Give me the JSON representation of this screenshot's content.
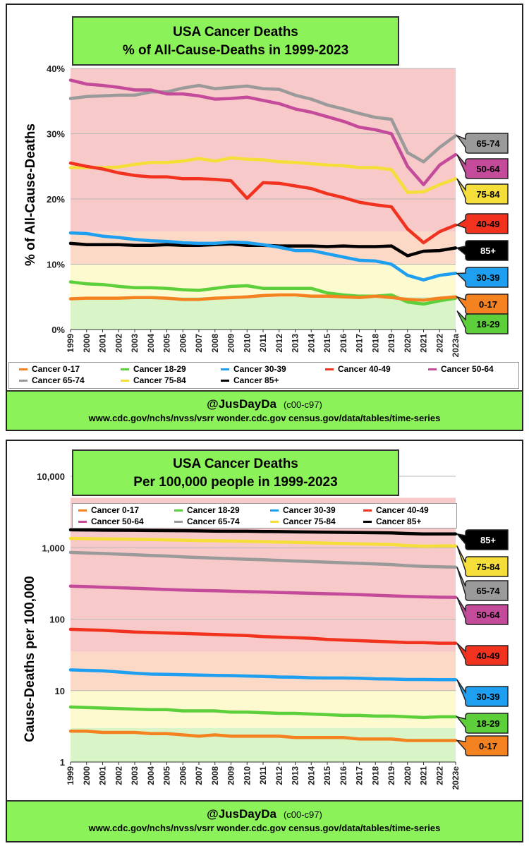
{
  "colors": {
    "c0_17": "#f58220",
    "c18_29": "#5ccf3a",
    "c30_39": "#1e9ff0",
    "c40_49": "#f0321e",
    "c50_64": "#c44a9a",
    "c65_74": "#9a9a9a",
    "c75_84": "#f5de3a",
    "c85": "#000000",
    "title_bg": "#8cf25a"
  },
  "charts": [
    {
      "title_line1": "USA Cancer Deaths",
      "title_line2": "% of All-Cause-Deaths in 1999-2023",
      "ylabel": "% of All-Cause-Deaths",
      "footer_handle": "@JusDayDa",
      "footer_codes": "(c00-c97)",
      "footer_sources": "www.cdc.gov/nchs/nvss/vsrr  wonder.cdc.gov  census.gov/data/tables/time-series",
      "legend": [
        "Cancer 0-17",
        "Cancer 18-29",
        "Cancer 30-39",
        "Cancer 40-49",
        "Cancer 50-64",
        "Cancer 65-74",
        "Cancer 75-84",
        "Cancer 85+"
      ]
    },
    {
      "title_line1": "USA Cancer Deaths",
      "title_line2": "Per 100,000 people in 1999-2023",
      "ylabel": "Cause-Deaths per 100,000",
      "footer_handle": "@JusDayDa",
      "footer_codes": "(c00-c97)",
      "footer_sources": "www.cdc.gov/nchs/nvss/vsrr  wonder.cdc.gov  census.gov/data/tables/time-series",
      "legend": [
        "Cancer 0-17",
        "Cancer 18-29",
        "Cancer 30-39",
        "Cancer 40-49",
        "Cancer 50-64",
        "Cancer 65-74",
        "Cancer 75-84",
        "Cancer 85+"
      ]
    }
  ],
  "chart_data": [
    {
      "type": "line",
      "title": "USA Cancer Deaths % of All-Cause-Deaths in 1999-2023",
      "ylabel": "% of All-Cause-Deaths",
      "x": [
        "1999",
        "2000",
        "2001",
        "2002",
        "2003",
        "2004",
        "2005",
        "2006",
        "2007",
        "2008",
        "2009",
        "2010",
        "2011",
        "2012",
        "2013",
        "2014",
        "2015",
        "2016",
        "2017",
        "2018",
        "2019",
        "2020",
        "2021",
        "2022",
        "2023a"
      ],
      "ylim": [
        0,
        40
      ],
      "yticks": [
        "0%",
        "10%",
        "20%",
        "30%",
        "40%"
      ],
      "bands": [
        {
          "from": 0,
          "to": 5,
          "color": "#d9f5c8"
        },
        {
          "from": 5,
          "to": 10,
          "color": "#fdfad0"
        },
        {
          "from": 10,
          "to": 15,
          "color": "#fcd9c6"
        },
        {
          "from": 15,
          "to": 40,
          "color": "#f8c9c9"
        }
      ],
      "series": [
        {
          "name": "Cancer 0-17",
          "key": "c0_17",
          "tag": "0-17",
          "values": [
            4.7,
            4.8,
            4.8,
            4.8,
            4.9,
            4.9,
            4.8,
            4.6,
            4.6,
            4.8,
            4.9,
            5.0,
            5.2,
            5.3,
            5.3,
            5.1,
            5.1,
            5.0,
            4.9,
            5.1,
            4.9,
            4.6,
            4.5,
            4.8,
            5.0
          ]
        },
        {
          "name": "Cancer 18-29",
          "key": "c18_29",
          "tag": "18-29",
          "values": [
            7.3,
            7.0,
            6.9,
            6.6,
            6.4,
            6.4,
            6.3,
            6.1,
            6.0,
            6.3,
            6.6,
            6.7,
            6.3,
            6.3,
            6.3,
            6.3,
            5.6,
            5.3,
            5.1,
            5.1,
            5.3,
            4.2,
            3.9,
            4.4,
            4.8
          ]
        },
        {
          "name": "Cancer 30-39",
          "key": "c30_39",
          "tag": "30-39",
          "values": [
            14.8,
            14.7,
            14.3,
            14.1,
            13.8,
            13.6,
            13.5,
            13.3,
            13.2,
            13.2,
            13.4,
            13.3,
            13.0,
            12.6,
            12.1,
            12.1,
            11.6,
            11.1,
            10.6,
            10.5,
            10.0,
            8.3,
            7.6,
            8.3,
            8.6
          ]
        },
        {
          "name": "Cancer 40-49",
          "key": "c40_49",
          "tag": "40-49",
          "values": [
            25.5,
            25.0,
            24.6,
            24.0,
            23.6,
            23.4,
            23.4,
            23.1,
            23.1,
            23.0,
            22.8,
            20.1,
            22.5,
            22.4,
            22.0,
            21.6,
            20.8,
            20.2,
            19.5,
            19.1,
            18.8,
            15.4,
            13.3,
            15.0,
            16.0
          ]
        },
        {
          "name": "Cancer 50-64",
          "key": "c50_64",
          "tag": "50-64",
          "values": [
            38.2,
            37.6,
            37.4,
            37.1,
            36.7,
            36.7,
            36.1,
            36.1,
            35.8,
            35.3,
            35.4,
            35.6,
            35.1,
            34.6,
            33.8,
            33.3,
            32.6,
            31.9,
            31.0,
            30.6,
            30.0,
            25.0,
            22.2,
            25.2,
            26.8
          ]
        },
        {
          "name": "Cancer 65-74",
          "key": "c65_74",
          "tag": "65-74",
          "values": [
            35.4,
            35.7,
            35.8,
            35.9,
            35.9,
            36.4,
            36.4,
            37.0,
            37.4,
            36.9,
            37.1,
            37.3,
            36.9,
            36.8,
            35.9,
            35.3,
            34.4,
            33.8,
            33.1,
            32.5,
            32.2,
            27.1,
            25.7,
            27.9,
            29.7
          ]
        },
        {
          "name": "Cancer 75-84",
          "key": "c75_84",
          "tag": "75-84",
          "values": [
            24.8,
            24.8,
            24.8,
            24.9,
            25.3,
            25.6,
            25.6,
            25.8,
            26.2,
            25.8,
            26.3,
            26.1,
            26.0,
            25.7,
            25.6,
            25.4,
            25.2,
            25.1,
            24.8,
            24.8,
            24.5,
            21.0,
            21.1,
            22.2,
            23.1
          ]
        },
        {
          "name": "Cancer 85+",
          "key": "c85",
          "tag": "85+",
          "values": [
            13.2,
            13.0,
            13.0,
            13.0,
            12.9,
            12.9,
            13.0,
            12.9,
            12.9,
            13.0,
            13.1,
            12.9,
            12.9,
            12.8,
            12.8,
            12.8,
            12.7,
            12.8,
            12.7,
            12.7,
            12.8,
            11.3,
            12.0,
            12.1,
            12.5
          ]
        }
      ],
      "tag_order_top_down": [
        "c65_74",
        "c50_64",
        "c75_84",
        "c40_49",
        "c85",
        "c30_39",
        "c0_17",
        "c18_29"
      ]
    },
    {
      "type": "line",
      "scale": "log",
      "title": "USA Cancer Deaths Per 100,000 people in 1999-2023",
      "ylabel": "Cause-Deaths per 100,000",
      "x": [
        "1999",
        "2000",
        "2001",
        "2002",
        "2003",
        "2004",
        "2005",
        "2006",
        "2007",
        "2008",
        "2009",
        "2010",
        "2011",
        "2012",
        "2013",
        "2014",
        "2015",
        "2016",
        "2017",
        "2018",
        "2019",
        "2020",
        "2021",
        "2022",
        "2023e"
      ],
      "ylim": [
        1,
        10000
      ],
      "yticks": [
        "1",
        "10",
        "100",
        "1,000",
        "10,000"
      ],
      "bands": [
        {
          "from": 1,
          "to": 3,
          "color": "#d9f5c8"
        },
        {
          "from": 3,
          "to": 10,
          "color": "#fdfad0"
        },
        {
          "from": 10,
          "to": 35,
          "color": "#fcd9c6"
        },
        {
          "from": 35,
          "to": 5000,
          "color": "#f8c9c9"
        }
      ],
      "series": [
        {
          "name": "Cancer 0-17",
          "key": "c0_17",
          "tag": "0-17",
          "values": [
            2.7,
            2.7,
            2.6,
            2.6,
            2.6,
            2.5,
            2.5,
            2.4,
            2.3,
            2.4,
            2.3,
            2.3,
            2.3,
            2.3,
            2.2,
            2.2,
            2.2,
            2.2,
            2.1,
            2.1,
            2.1,
            2.0,
            2.0,
            2.0,
            2.0
          ]
        },
        {
          "name": "Cancer 18-29",
          "key": "c18_29",
          "tag": "18-29",
          "values": [
            5.9,
            5.8,
            5.7,
            5.6,
            5.5,
            5.4,
            5.4,
            5.2,
            5.2,
            5.2,
            5.0,
            5.0,
            4.9,
            4.8,
            4.8,
            4.7,
            4.6,
            4.5,
            4.5,
            4.4,
            4.4,
            4.3,
            4.2,
            4.3,
            4.3
          ]
        },
        {
          "name": "Cancer 30-39",
          "key": "c30_39",
          "tag": "30-39",
          "values": [
            19.5,
            19.2,
            18.9,
            18.2,
            17.5,
            17.0,
            16.9,
            16.7,
            16.5,
            16.3,
            16.2,
            16.0,
            15.8,
            15.5,
            15.4,
            15.1,
            15.0,
            15.0,
            14.9,
            14.6,
            14.5,
            14.3,
            14.3,
            14.2,
            14.2
          ]
        },
        {
          "name": "Cancer 40-49",
          "key": "c40_49",
          "tag": "40-49",
          "values": [
            72,
            71,
            70,
            68,
            66,
            65,
            64,
            63,
            62,
            61,
            60,
            59,
            57,
            56,
            55,
            54,
            52,
            51,
            50,
            49,
            48,
            47,
            47,
            46,
            46
          ]
        },
        {
          "name": "Cancer 50-64",
          "key": "c50_64",
          "tag": "50-64",
          "values": [
            290,
            285,
            280,
            275,
            270,
            265,
            260,
            255,
            252,
            250,
            246,
            243,
            240,
            236,
            233,
            230,
            227,
            224,
            220,
            216,
            212,
            208,
            205,
            203,
            202
          ]
        },
        {
          "name": "Cancer 65-74",
          "key": "c65_74",
          "tag": "65-74",
          "values": [
            860,
            845,
            830,
            812,
            795,
            780,
            765,
            745,
            730,
            715,
            702,
            690,
            678,
            665,
            652,
            640,
            628,
            616,
            604,
            592,
            581,
            560,
            548,
            540,
            535
          ]
        },
        {
          "name": "Cancer 75-84",
          "key": "c75_84",
          "tag": "75-84",
          "values": [
            1350,
            1340,
            1330,
            1320,
            1310,
            1300,
            1290,
            1275,
            1260,
            1250,
            1240,
            1230,
            1215,
            1200,
            1190,
            1175,
            1160,
            1145,
            1130,
            1120,
            1110,
            1070,
            1050,
            1060,
            1060
          ]
        },
        {
          "name": "Cancer 85+",
          "key": "c85",
          "tag": "85+",
          "values": [
            1780,
            1770,
            1760,
            1755,
            1750,
            1740,
            1735,
            1730,
            1720,
            1710,
            1700,
            1700,
            1690,
            1680,
            1670,
            1660,
            1650,
            1640,
            1630,
            1620,
            1610,
            1580,
            1560,
            1560,
            1560
          ]
        }
      ],
      "tag_order_top_down": [
        "c85",
        "c75_84",
        "c65_74",
        "c50_64",
        "c40_49",
        "c30_39",
        "c18_29",
        "c0_17"
      ]
    }
  ]
}
